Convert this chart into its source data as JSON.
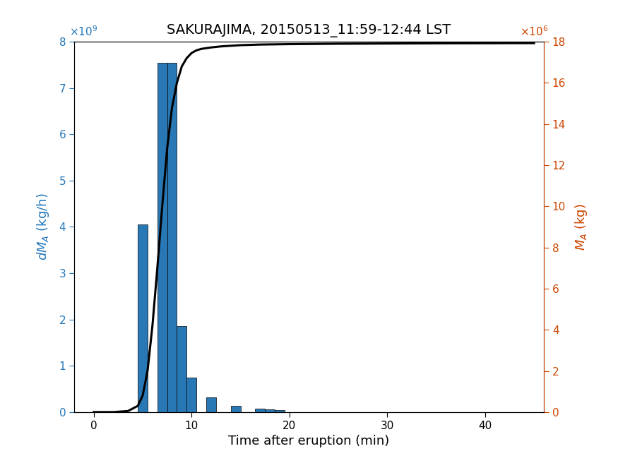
{
  "title": "SAKURAJIMA, 20150513_11:59-12:44 LST",
  "xlabel": "Time after eruption (min)",
  "ylabel_left": "dMₐ (kg/h)",
  "ylabel_right": "Mₐ (kg)",
  "bar_lefts": [
    4.5,
    6.5,
    7.5,
    8.5,
    9.5,
    11.5,
    14.0,
    16.5,
    17.5,
    18.5
  ],
  "bar_heights": [
    4050000000.0,
    7550000000.0,
    7550000000.0,
    1850000000.0,
    750000000.0,
    320000000.0,
    130000000.0,
    70000000.0,
    60000000.0,
    50000000.0
  ],
  "bar_width": 1.0,
  "bar_color": "#2878b5",
  "xlim": [
    -2,
    46
  ],
  "ylim_left": [
    0,
    8000000000.0
  ],
  "ylim_right": [
    0,
    18000000.0
  ],
  "line_color": "black",
  "line_width": 2.2,
  "cumulative_x": [
    0,
    2,
    3.5,
    4.5,
    5.0,
    5.5,
    6.0,
    6.5,
    7.0,
    7.5,
    8.0,
    8.5,
    9.0,
    9.5,
    10.0,
    10.5,
    11.0,
    12.0,
    13.0,
    14.0,
    15.0,
    17.0,
    20.0,
    25.0,
    30.0,
    35.0,
    40.0,
    45.0
  ],
  "cumulative_y": [
    0,
    0,
    50000.0,
    300000.0,
    800000.0,
    2000000.0,
    4200000.0,
    7000000.0,
    10000000.0,
    12800000.0,
    14800000.0,
    16000000.0,
    16800000.0,
    17200000.0,
    17450000.0,
    17580000.0,
    17650000.0,
    17720000.0,
    17770000.0,
    17800000.0,
    17830000.0,
    17860000.0,
    17880000.0,
    17900000.0,
    17910000.0,
    17920000.0,
    17925000.0,
    17930000.0
  ],
  "left_tick_color": "#2277bb",
  "right_tick_color": "#cc4400",
  "title_fontsize": 14,
  "axis_label_fontsize": 13,
  "tick_fontsize": 11
}
